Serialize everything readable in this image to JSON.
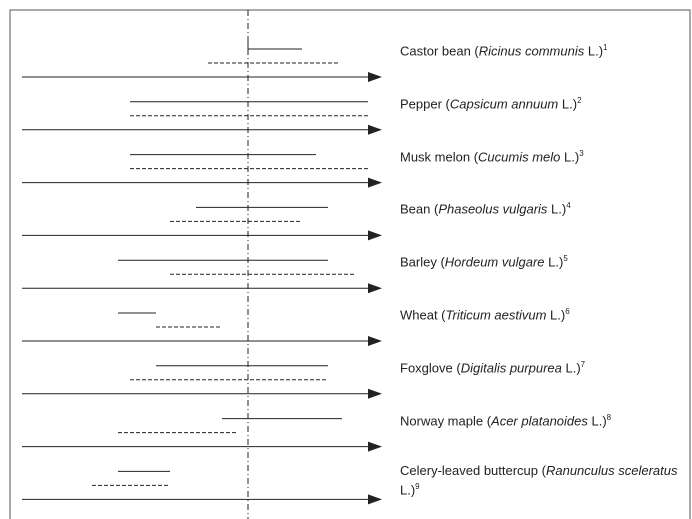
{
  "rows": [
    {
      "prefix": "Castor bean (",
      "italic": "Ricinus communis",
      "suffix": " L.)",
      "note": "1"
    },
    {
      "prefix": "Pepper (",
      "italic": "Capsicum annuum",
      "suffix": " L.)",
      "note": "2"
    },
    {
      "prefix": "Musk melon (",
      "italic": "Cucumis melo",
      "suffix": " L.)",
      "note": "3"
    },
    {
      "prefix": "Bean (",
      "italic": "Phaseolus vulgaris",
      "suffix": " L.)",
      "note": "4"
    },
    {
      "prefix": "Barley (",
      "italic": "Hordeum vulgare",
      "suffix": " L.)",
      "note": "5"
    },
    {
      "prefix": "Wheat (",
      "italic": "Triticum aestivum",
      "suffix": " L.)",
      "note": "6"
    },
    {
      "prefix": "Foxglove (",
      "italic": "Digitalis purpurea",
      "suffix": " L.)",
      "note": "7"
    },
    {
      "prefix": "Norway maple (",
      "italic": "Acer platanoides",
      "suffix": " L.)",
      "note": "8"
    },
    {
      "prefix": "Celery-leaved buttercup (",
      "italic": "Ranunculus sceleratus",
      "suffix": " L.)",
      "note": "9"
    }
  ]
}
